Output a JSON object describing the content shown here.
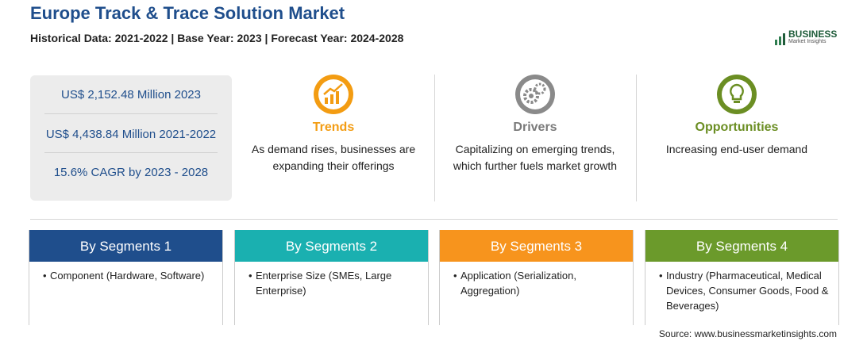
{
  "header": {
    "title": "Europe Track & Trace Solution Market",
    "subtitle": "Historical Data: 2021-2022 | Base Year: 2023 | Forecast Year: 2024-2028"
  },
  "logo": {
    "name": "BUSINESS",
    "tagline": "Market Insights"
  },
  "stats": [
    "US$ 2,152.48 Million 2023",
    "US$ 4,438.84 Million 2021-2022",
    "15.6% CAGR by 2023 - 2028"
  ],
  "factors": [
    {
      "label": "Trends",
      "text": "As demand rises, businesses are expanding their offerings"
    },
    {
      "label": "Drivers",
      "text": "Capitalizing on emerging trends, which further fuels market growth"
    },
    {
      "label": "Opportunities",
      "text": "Increasing end-user demand"
    }
  ],
  "segments": [
    {
      "title": "By Segments 1",
      "items": [
        "Component (Hardware, Software)"
      ]
    },
    {
      "title": "By Segments 2",
      "items": [
        "Enterprise Size (SMEs, Large Enterprise)"
      ]
    },
    {
      "title": "By Segments 3",
      "items": [
        "Application (Serialization, Aggregation)"
      ]
    },
    {
      "title": "By Segments 4",
      "items": [
        "Industry (Pharmaceutical, Medical Devices, Consumer Goods, Food & Beverages)"
      ]
    }
  ],
  "source": "Source: www.businessmarketinsights.com"
}
